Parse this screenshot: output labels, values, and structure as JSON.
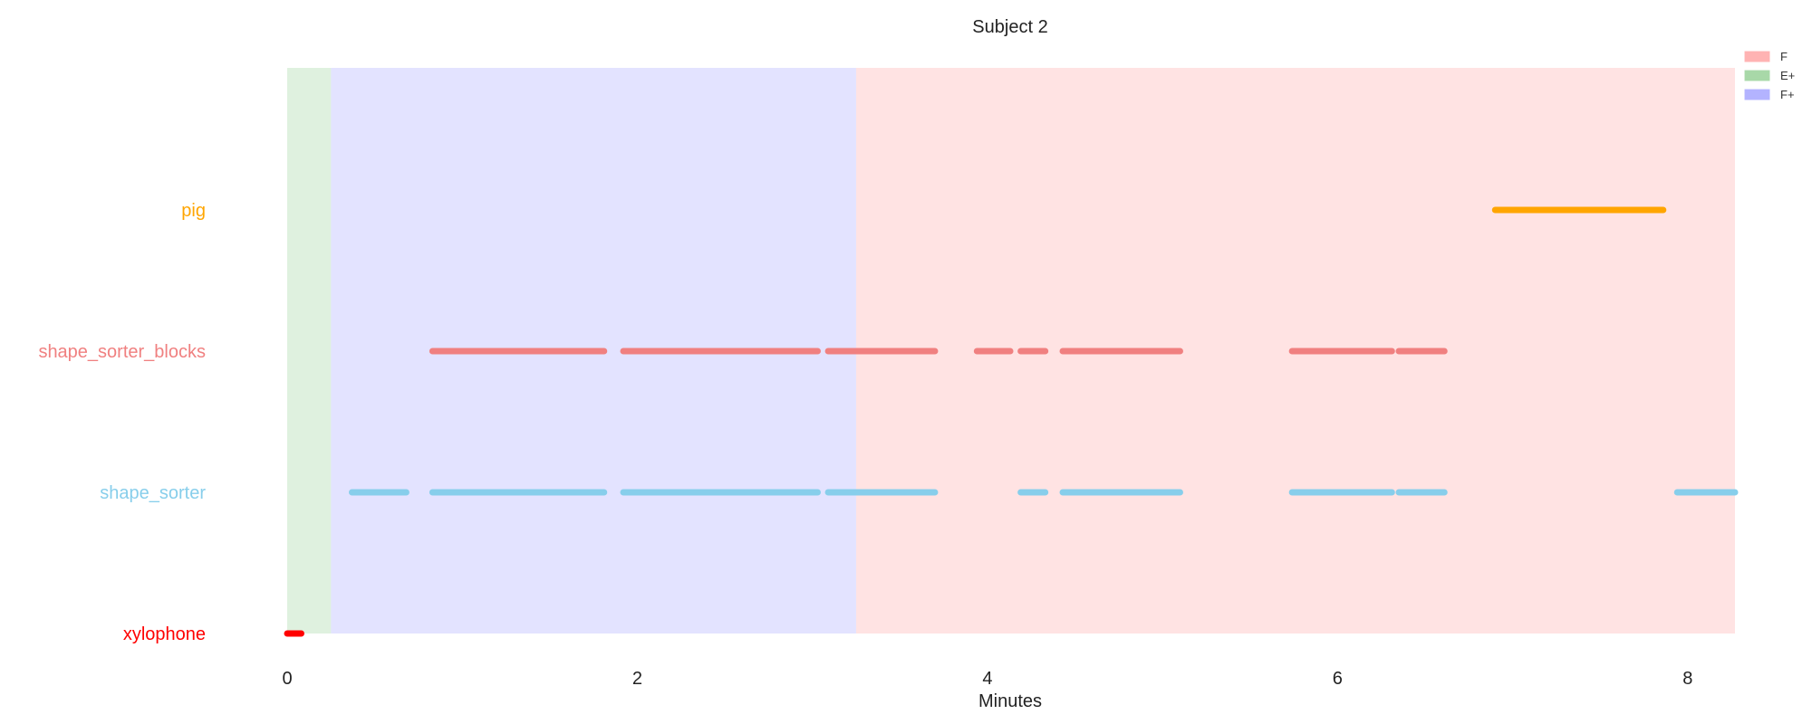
{
  "chart_data": {
    "type": "timeline",
    "title": "Subject 2",
    "xlabel": "Minutes",
    "ylabel": "",
    "xlim": [
      0,
      8.27
    ],
    "xticks": [
      0,
      2,
      4,
      6,
      8
    ],
    "grid": false,
    "legend_position": "top-right",
    "phases": [
      {
        "name": "F",
        "color": "#ffb3b3"
      },
      {
        "name": "E+",
        "color": "#a8d8a8"
      },
      {
        "name": "F+",
        "color": "#b3b3ff"
      }
    ],
    "phase_spans": [
      {
        "phase": "E+",
        "start": 0.0,
        "end": 0.25
      },
      {
        "phase": "F+",
        "start": 0.25,
        "end": 3.25
      },
      {
        "phase": "F",
        "start": 3.25,
        "end": 8.27
      }
    ],
    "series": [
      {
        "name": "xylophone",
        "color": "#ff0000",
        "segments": [
          [
            0.0,
            0.08
          ]
        ]
      },
      {
        "name": "shape_sorter",
        "color": "#87ceeb",
        "segments": [
          [
            0.37,
            0.68
          ],
          [
            0.83,
            1.81
          ],
          [
            1.92,
            3.03
          ],
          [
            3.09,
            3.7
          ],
          [
            4.19,
            4.33
          ],
          [
            4.43,
            5.1
          ],
          [
            5.74,
            6.31
          ],
          [
            6.35,
            6.61
          ],
          [
            7.94,
            8.27
          ]
        ]
      },
      {
        "name": "shape_sorter_blocks",
        "color": "#f08080",
        "segments": [
          [
            0.83,
            1.81
          ],
          [
            1.92,
            3.03
          ],
          [
            3.09,
            3.7
          ],
          [
            3.94,
            4.13
          ],
          [
            4.19,
            4.33
          ],
          [
            4.43,
            5.1
          ],
          [
            5.74,
            6.31
          ],
          [
            6.35,
            6.61
          ]
        ]
      },
      {
        "name": "pig",
        "color": "#ffa500",
        "segments": [
          [
            6.9,
            7.86
          ]
        ]
      }
    ]
  }
}
